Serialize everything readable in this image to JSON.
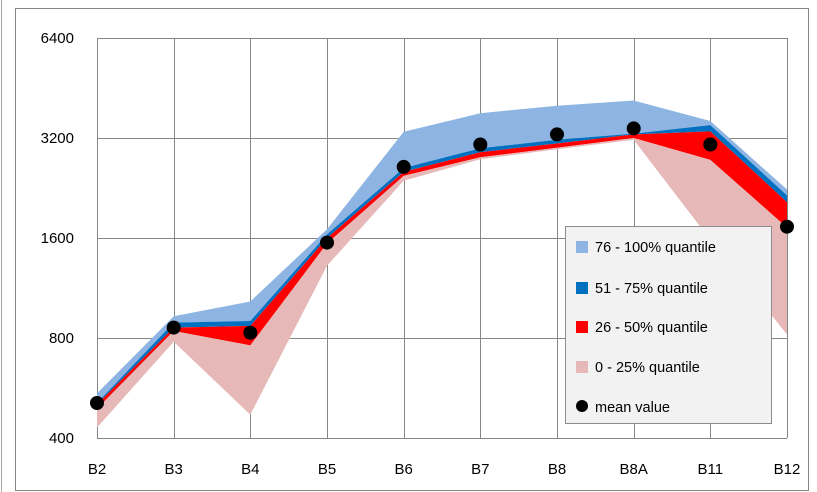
{
  "chart_data": {
    "type": "area",
    "y_scale": "log2",
    "ylim": [
      400,
      6400
    ],
    "y_ticks": [
      "6400",
      "3200",
      "1600",
      "800",
      "400"
    ],
    "categories": [
      "B2",
      "B3",
      "B4",
      "B5",
      "B6",
      "B7",
      "B8",
      "B8A",
      "B11",
      "B12"
    ],
    "title": "",
    "xlabel": "",
    "ylabel": "",
    "grid": true,
    "legend_position": "right",
    "series": [
      {
        "name": "76 - 100% quantile",
        "color": "#8db4e2",
        "lower": [
          510,
          890,
          900,
          1640,
          2600,
          2980,
          3160,
          3300,
          3500,
          2150
        ],
        "upper": [
          545,
          930,
          1030,
          1700,
          3340,
          3800,
          4000,
          4150,
          3600,
          2240
        ]
      },
      {
        "name": "51 - 75% quantile",
        "color": "#0070c0",
        "lower": [
          505,
          860,
          870,
          1600,
          2530,
          2900,
          3080,
          3280,
          3350,
          2050
        ],
        "upper": [
          510,
          890,
          900,
          1640,
          2600,
          2980,
          3160,
          3300,
          3500,
          2150
        ]
      },
      {
        "name": "26 - 50% quantile",
        "color": "#ff0000",
        "lower": [
          490,
          840,
          760,
          1540,
          2460,
          2800,
          2990,
          3200,
          2750,
          1720
        ],
        "upper": [
          505,
          860,
          870,
          1600,
          2530,
          2900,
          3080,
          3280,
          3350,
          2050
        ]
      },
      {
        "name": "0 - 25% quantile",
        "color": "#e6b9b8",
        "lower": [
          430,
          780,
          470,
          1320,
          2380,
          2760,
          2960,
          3160,
          1580,
          820
        ],
        "upper": [
          490,
          840,
          760,
          1540,
          2460,
          2800,
          2990,
          3200,
          2750,
          1720
        ]
      }
    ],
    "mean": {
      "name": "mean value",
      "color": "#000000",
      "values": [
        510,
        860,
        830,
        1550,
        2620,
        3060,
        3280,
        3420,
        3060,
        1730
      ]
    }
  }
}
